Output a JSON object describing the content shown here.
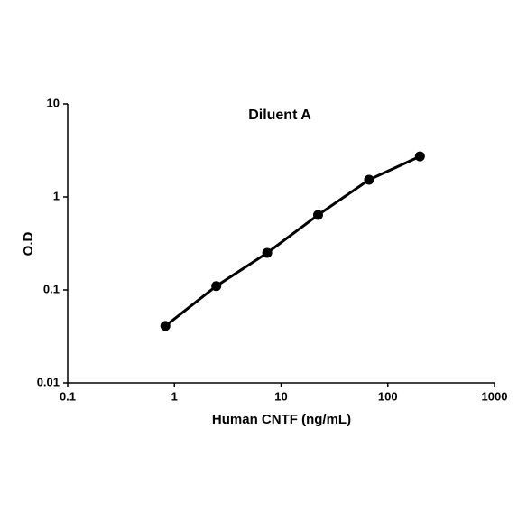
{
  "chart_data": {
    "type": "line",
    "title": "Diluent A",
    "x_label": "Human CNTF (ng/mL)",
    "y_label": "O.D",
    "x": [
      0.823,
      2.47,
      7.41,
      22.2,
      66.7,
      200
    ],
    "series": [
      {
        "values": [
          0.041,
          0.11,
          0.25,
          0.64,
          1.53,
          2.73
        ],
        "color": "#000000"
      }
    ],
    "xscale": "log",
    "yscale": "log",
    "xlim": [
      0.1,
      1000
    ],
    "ylim": [
      0.01,
      10
    ],
    "xticks": [
      0.1,
      1,
      10,
      100,
      1000
    ],
    "yticks": [
      0.01,
      0.1,
      1,
      10
    ],
    "markers": true,
    "grid": false
  }
}
